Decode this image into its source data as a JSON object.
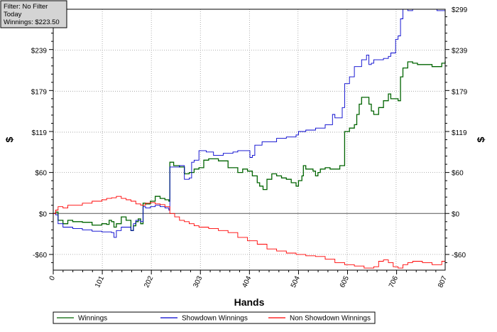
{
  "chart_data": {
    "type": "line",
    "info_box": {
      "filter": "Filter: No Filter",
      "period": "Today",
      "winnings": "Winnings: $223.50"
    },
    "xlabel": "Hands",
    "ylabel": "$",
    "xlim": [
      0,
      807
    ],
    "ylim": [
      -83,
      299
    ],
    "x_ticks": [
      0,
      101,
      202,
      303,
      404,
      504,
      605,
      706,
      807
    ],
    "y_ticks": [
      {
        "value": 299,
        "label": "$299"
      },
      {
        "value": 239,
        "label": "$239"
      },
      {
        "value": 179,
        "label": "$179"
      },
      {
        "value": 119,
        "label": "$119"
      },
      {
        "value": 60,
        "label": "$60"
      },
      {
        "value": 0,
        "label": "$0"
      },
      {
        "value": -60,
        "label": "-$60"
      }
    ],
    "grid": true,
    "legend_position": "bottom",
    "series": [
      {
        "name": "Winnings",
        "color": "#006400",
        "points": [
          [
            0,
            0
          ],
          [
            5,
            2
          ],
          [
            10,
            -10
          ],
          [
            20,
            -15
          ],
          [
            30,
            -10
          ],
          [
            40,
            -12
          ],
          [
            60,
            -13
          ],
          [
            80,
            -17
          ],
          [
            100,
            -15
          ],
          [
            110,
            -16
          ],
          [
            115,
            -10
          ],
          [
            120,
            -12
          ],
          [
            125,
            -20
          ],
          [
            130,
            -15
          ],
          [
            140,
            -5
          ],
          [
            150,
            -10
          ],
          [
            160,
            -25
          ],
          [
            165,
            -18
          ],
          [
            170,
            -12
          ],
          [
            175,
            -8
          ],
          [
            180,
            -15
          ],
          [
            185,
            15
          ],
          [
            190,
            14
          ],
          [
            200,
            18
          ],
          [
            210,
            25
          ],
          [
            220,
            22
          ],
          [
            230,
            20
          ],
          [
            238,
            18
          ],
          [
            240,
            75
          ],
          [
            248,
            70
          ],
          [
            260,
            68
          ],
          [
            270,
            58
          ],
          [
            280,
            60
          ],
          [
            290,
            65
          ],
          [
            300,
            67
          ],
          [
            310,
            78
          ],
          [
            320,
            80
          ],
          [
            340,
            77
          ],
          [
            360,
            67
          ],
          [
            380,
            60
          ],
          [
            390,
            65
          ],
          [
            400,
            62
          ],
          [
            410,
            55
          ],
          [
            420,
            45
          ],
          [
            425,
            40
          ],
          [
            432,
            35
          ],
          [
            440,
            50
          ],
          [
            450,
            58
          ],
          [
            460,
            55
          ],
          [
            470,
            52
          ],
          [
            480,
            50
          ],
          [
            490,
            45
          ],
          [
            500,
            40
          ],
          [
            505,
            48
          ],
          [
            512,
            55
          ],
          [
            515,
            70
          ],
          [
            520,
            65
          ],
          [
            535,
            62
          ],
          [
            540,
            55
          ],
          [
            545,
            60
          ],
          [
            550,
            65
          ],
          [
            560,
            67
          ],
          [
            570,
            65
          ],
          [
            580,
            65
          ],
          [
            590,
            70
          ],
          [
            595,
            70
          ],
          [
            600,
            120
          ],
          [
            610,
            125
          ],
          [
            620,
            130
          ],
          [
            625,
            145
          ],
          [
            630,
            160
          ],
          [
            635,
            170
          ],
          [
            645,
            170
          ],
          [
            650,
            160
          ],
          [
            655,
            150
          ],
          [
            660,
            145
          ],
          [
            670,
            155
          ],
          [
            680,
            165
          ],
          [
            690,
            175
          ],
          [
            695,
            168
          ],
          [
            700,
            168
          ],
          [
            710,
            165
          ],
          [
            715,
            200
          ],
          [
            720,
            213
          ],
          [
            730,
            222
          ],
          [
            740,
            220
          ],
          [
            750,
            218
          ],
          [
            760,
            218
          ],
          [
            770,
            218
          ],
          [
            780,
            215
          ],
          [
            790,
            215
          ],
          [
            800,
            220
          ],
          [
            807,
            223
          ]
        ]
      },
      {
        "name": "Showdown Winnings",
        "color": "#0000cd",
        "points": [
          [
            0,
            0
          ],
          [
            5,
            -2
          ],
          [
            10,
            -15
          ],
          [
            20,
            -20
          ],
          [
            40,
            -22
          ],
          [
            60,
            -24
          ],
          [
            80,
            -26
          ],
          [
            100,
            -27
          ],
          [
            120,
            -28
          ],
          [
            125,
            -35
          ],
          [
            130,
            -25
          ],
          [
            140,
            -20
          ],
          [
            160,
            -25
          ],
          [
            165,
            -15
          ],
          [
            170,
            -10
          ],
          [
            180,
            -12
          ],
          [
            185,
            10
          ],
          [
            190,
            8
          ],
          [
            200,
            10
          ],
          [
            210,
            12
          ],
          [
            220,
            10
          ],
          [
            230,
            8
          ],
          [
            238,
            5
          ],
          [
            240,
            68
          ],
          [
            260,
            70
          ],
          [
            270,
            50
          ],
          [
            280,
            52
          ],
          [
            285,
            75
          ],
          [
            290,
            78
          ],
          [
            300,
            92
          ],
          [
            315,
            90
          ],
          [
            330,
            85
          ],
          [
            350,
            88
          ],
          [
            370,
            90
          ],
          [
            380,
            92
          ],
          [
            400,
            92
          ],
          [
            405,
            82
          ],
          [
            410,
            85
          ],
          [
            415,
            100
          ],
          [
            430,
            105
          ],
          [
            460,
            110
          ],
          [
            480,
            112
          ],
          [
            500,
            115
          ],
          [
            505,
            120
          ],
          [
            520,
            122
          ],
          [
            540,
            125
          ],
          [
            560,
            130
          ],
          [
            575,
            145
          ],
          [
            580,
            140
          ],
          [
            595,
            155
          ],
          [
            600,
            190
          ],
          [
            610,
            200
          ],
          [
            620,
            215
          ],
          [
            635,
            225
          ],
          [
            645,
            232
          ],
          [
            650,
            218
          ],
          [
            655,
            220
          ],
          [
            660,
            225
          ],
          [
            670,
            225
          ],
          [
            680,
            227
          ],
          [
            690,
            230
          ],
          [
            695,
            235
          ],
          [
            700,
            235
          ],
          [
            705,
            255
          ],
          [
            710,
            260
          ],
          [
            715,
            285
          ],
          [
            720,
            299
          ],
          [
            730,
            297
          ],
          [
            740,
            299
          ],
          [
            760,
            299
          ],
          [
            780,
            299
          ],
          [
            790,
            297
          ],
          [
            807,
            297
          ]
        ]
      },
      {
        "name": "Non Showdown Winnings",
        "color": "#ff0000",
        "points": [
          [
            0,
            0
          ],
          [
            5,
            5
          ],
          [
            10,
            10
          ],
          [
            20,
            8
          ],
          [
            30,
            12
          ],
          [
            50,
            12
          ],
          [
            60,
            15
          ],
          [
            70,
            15
          ],
          [
            80,
            18
          ],
          [
            100,
            20
          ],
          [
            110,
            22
          ],
          [
            120,
            23
          ],
          [
            130,
            25
          ],
          [
            140,
            22
          ],
          [
            150,
            20
          ],
          [
            160,
            18
          ],
          [
            170,
            14
          ],
          [
            180,
            12
          ],
          [
            190,
            15
          ],
          [
            200,
            16
          ],
          [
            210,
            14
          ],
          [
            220,
            13
          ],
          [
            230,
            10
          ],
          [
            240,
            0
          ],
          [
            250,
            -5
          ],
          [
            260,
            -10
          ],
          [
            270,
            -12
          ],
          [
            280,
            -15
          ],
          [
            290,
            -18
          ],
          [
            300,
            -20
          ],
          [
            320,
            -22
          ],
          [
            340,
            -25
          ],
          [
            360,
            -28
          ],
          [
            380,
            -35
          ],
          [
            400,
            -40
          ],
          [
            420,
            -45
          ],
          [
            440,
            -52
          ],
          [
            460,
            -55
          ],
          [
            480,
            -58
          ],
          [
            500,
            -60
          ],
          [
            520,
            -62
          ],
          [
            540,
            -63
          ],
          [
            560,
            -67
          ],
          [
            580,
            -72
          ],
          [
            600,
            -75
          ],
          [
            620,
            -77
          ],
          [
            640,
            -80
          ],
          [
            660,
            -78
          ],
          [
            670,
            -70
          ],
          [
            680,
            -68
          ],
          [
            690,
            -72
          ],
          [
            700,
            -78
          ],
          [
            710,
            -80
          ],
          [
            720,
            -75
          ],
          [
            730,
            -72
          ],
          [
            740,
            -70
          ],
          [
            760,
            -72
          ],
          [
            780,
            -75
          ],
          [
            800,
            -70
          ],
          [
            807,
            -70
          ]
        ]
      }
    ]
  }
}
